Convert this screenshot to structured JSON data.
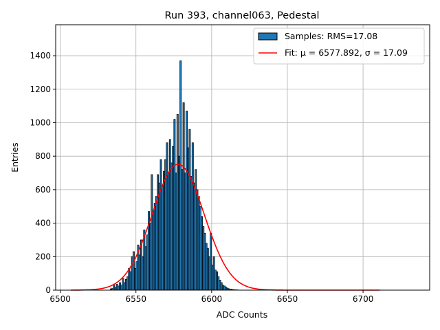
{
  "chart_data": {
    "type": "bar",
    "title": "Run 393, channel063, Pedestal",
    "xlabel": "ADC Counts",
    "ylabel": "Entries",
    "xlim": [
      6497,
      6744
    ],
    "ylim": [
      0,
      1585
    ],
    "grid": true,
    "xticks": [
      6500,
      6550,
      6600,
      6650,
      6700
    ],
    "yticks": [
      0,
      200,
      400,
      600,
      800,
      1000,
      1200,
      1400
    ],
    "hist_start": 6533,
    "bin_width": 1,
    "values": [
      8,
      10,
      30,
      15,
      35,
      25,
      45,
      30,
      70,
      45,
      65,
      80,
      130,
      110,
      200,
      230,
      130,
      170,
      270,
      210,
      300,
      200,
      360,
      260,
      330,
      470,
      400,
      690,
      470,
      520,
      560,
      690,
      640,
      780,
      620,
      710,
      780,
      880,
      700,
      900,
      760,
      860,
      1020,
      700,
      1050,
      800,
      1370,
      720,
      1120,
      700,
      1070,
      850,
      960,
      680,
      880,
      640,
      720,
      600,
      560,
      500,
      440,
      380,
      340,
      280,
      250,
      200,
      340,
      150,
      200,
      120,
      110,
      80,
      60,
      45,
      30,
      25,
      18,
      12,
      8,
      6,
      4,
      3,
      2,
      2,
      1
    ],
    "fit": {
      "mu": 6577.892,
      "sigma": 17.09,
      "amplitude": 752,
      "range": [
        6507,
        6711
      ]
    },
    "legend": {
      "placement": "top-right",
      "entries": [
        {
          "label": "Samples: RMS=17.08",
          "color": "#1f77b4"
        },
        {
          "label": "Fit: μ = 6577.892, σ = 17.09",
          "color": "#ff0000"
        }
      ]
    }
  }
}
